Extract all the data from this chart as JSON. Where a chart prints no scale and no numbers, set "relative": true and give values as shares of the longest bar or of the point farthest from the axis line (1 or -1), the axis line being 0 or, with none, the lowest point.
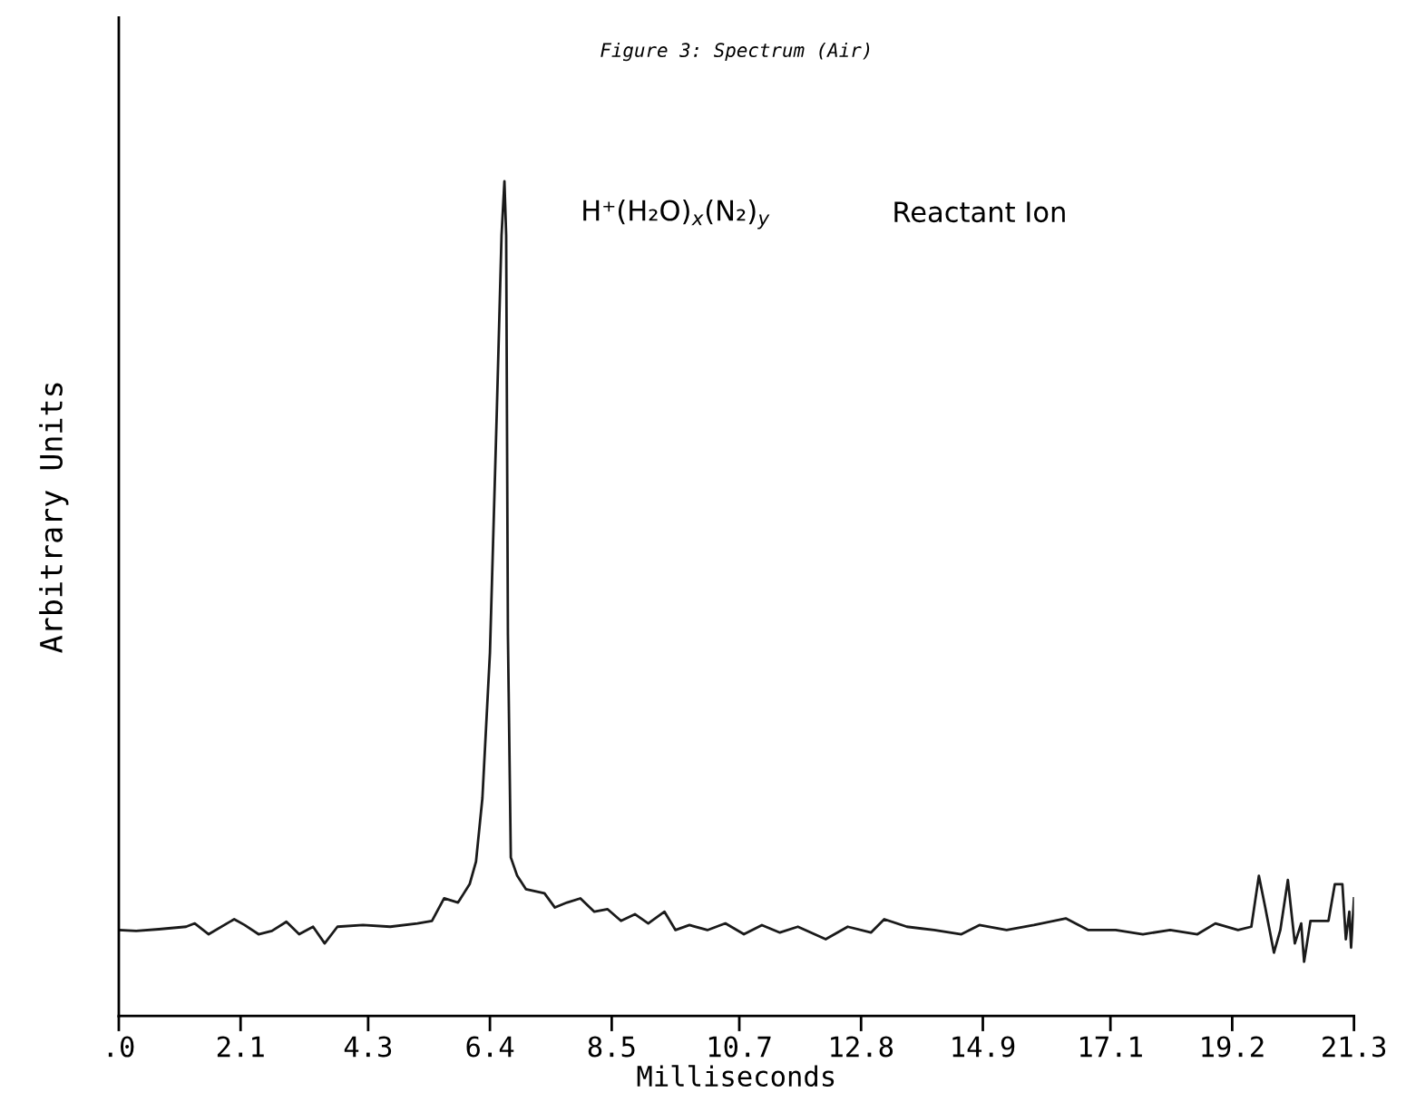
{
  "chart_data": {
    "type": "line",
    "title": "Figure 3: Spectrum (Air)",
    "xlabel": "Milliseconds",
    "ylabel": "Arbitrary Units",
    "relative": true,
    "color": "#1a1a1a",
    "xlim": [
      0,
      21.3
    ],
    "xticks": [
      {
        "value": 0,
        "label": ".0"
      },
      2.1,
      4.3,
      6.4,
      8.5,
      10.7,
      12.8,
      14.9,
      17.1,
      19.2,
      21.3
    ],
    "grid": false,
    "legend": false,
    "marker": "none",
    "line_style": "solid",
    "annotations": [
      "H⁺(H₂O)$_{x}$(N₂)$_{y}$",
      "Reactant Ion"
    ],
    "x": [
      0,
      0.3,
      0.69,
      1.16,
      1.31,
      1.55,
      1.99,
      2.17,
      2.41,
      2.64,
      2.89,
      3.11,
      3.35,
      3.55,
      3.77,
      4.21,
      4.68,
      5.15,
      5.4,
      5.61,
      5.85,
      6.05,
      6.16,
      6.27,
      6.4,
      6.52,
      6.6,
      6.65,
      6.68,
      6.71,
      6.76,
      6.87,
      7.02,
      7.34,
      7.52,
      7.73,
      7.96,
      8.2,
      8.43,
      8.66,
      8.9,
      9.13,
      9.41,
      9.6,
      9.84,
      10.15,
      10.46,
      10.78,
      11.09,
      11.4,
      11.71,
      12.19,
      12.57,
      12.97,
      13.2,
      13.59,
      14.06,
      14.53,
      14.84,
      15.31,
      15.78,
      16.33,
      16.72,
      17.19,
      17.66,
      18.13,
      18.6,
      18.91,
      19.3,
      19.53,
      19.66,
      19.77,
      19.92,
      20.03,
      20.16,
      20.28,
      20.39,
      20.44,
      20.55,
      20.86,
      20.97,
      21.1,
      21.16,
      21.22,
      21.25,
      21.3
    ],
    "values": [
      0.103,
      0.102,
      0.104,
      0.107,
      0.111,
      0.098,
      0.116,
      0.109,
      0.098,
      0.102,
      0.113,
      0.098,
      0.107,
      0.087,
      0.107,
      0.109,
      0.107,
      0.111,
      0.114,
      0.141,
      0.136,
      0.158,
      0.185,
      0.261,
      0.435,
      0.728,
      0.935,
      1.0,
      0.935,
      0.457,
      0.19,
      0.168,
      0.152,
      0.147,
      0.13,
      0.136,
      0.141,
      0.125,
      0.128,
      0.114,
      0.122,
      0.111,
      0.125,
      0.103,
      0.109,
      0.103,
      0.111,
      0.098,
      0.109,
      0.1,
      0.107,
      0.092,
      0.107,
      0.1,
      0.116,
      0.107,
      0.103,
      0.098,
      0.109,
      0.103,
      0.109,
      0.117,
      0.103,
      0.103,
      0.098,
      0.103,
      0.098,
      0.111,
      0.103,
      0.107,
      0.168,
      0.13,
      0.076,
      0.103,
      0.163,
      0.087,
      0.111,
      0.065,
      0.114,
      0.114,
      0.158,
      0.158,
      0.092,
      0.125,
      0.082,
      0.141
    ]
  }
}
